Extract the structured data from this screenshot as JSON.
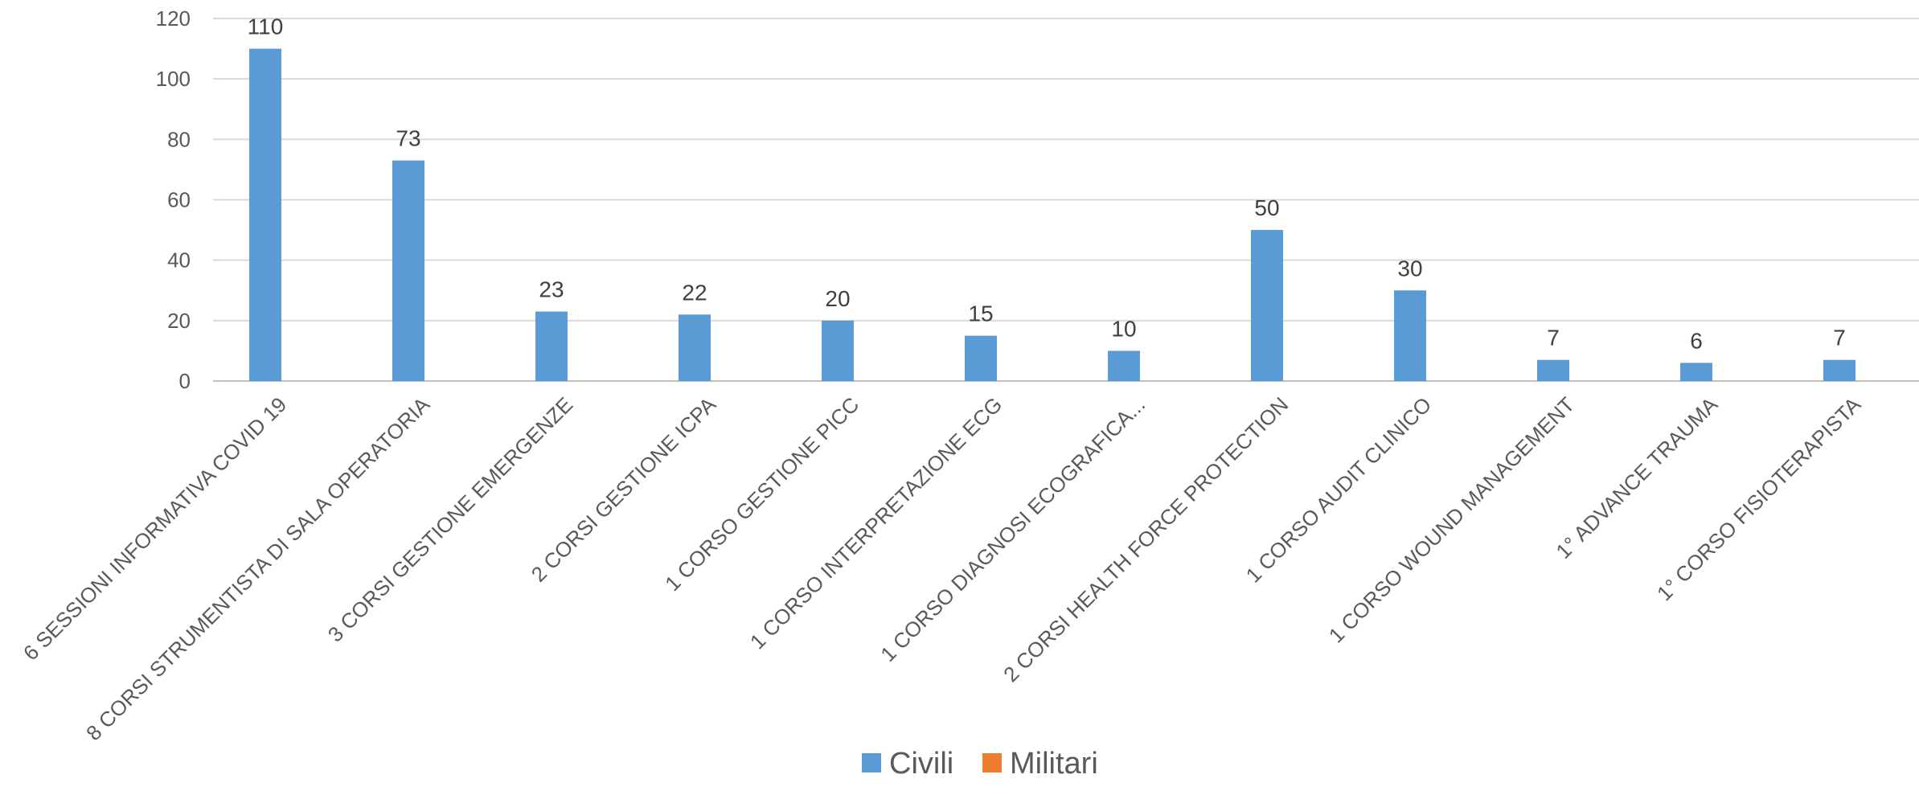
{
  "chart_data": {
    "type": "bar",
    "categories": [
      "6 SESSIONI INFORMATIVA COVID 19",
      "8 CORSI STRUMENTISTA DI SALA OPERATORIA",
      "3 CORSI GESTIONE EMERGENZE",
      "2 CORSI GESTIONE ICPA",
      "1 CORSO GESTIONE PICC",
      "1 CORSO INTERPRETAZIONE ECG",
      "1 CORSO DIAGNOSI ECOGRAFICA...",
      "2 CORSI HEALTH FORCE PROTECTION",
      "1 CORSO AUDIT CLINICO",
      "1 CORSO WOUND MANAGEMENT",
      "1° ADVANCE TRAUMA",
      "1° CORSO FISIOTERAPISTA"
    ],
    "series": [
      {
        "name": "Civili",
        "color": "#5B9BD5",
        "values": [
          110,
          73,
          23,
          22,
          20,
          15,
          10,
          50,
          30,
          7,
          6,
          7
        ]
      },
      {
        "name": "Militari",
        "color": "#ED7D31",
        "values": [
          0,
          0,
          0,
          0,
          0,
          0,
          0,
          0,
          0,
          0,
          0,
          0
        ]
      }
    ],
    "yticks": [
      0,
      20,
      40,
      60,
      80,
      100,
      120
    ],
    "ylim": [
      0,
      120
    ],
    "grid": true,
    "legend": "bottom-center",
    "data_labels": true
  }
}
